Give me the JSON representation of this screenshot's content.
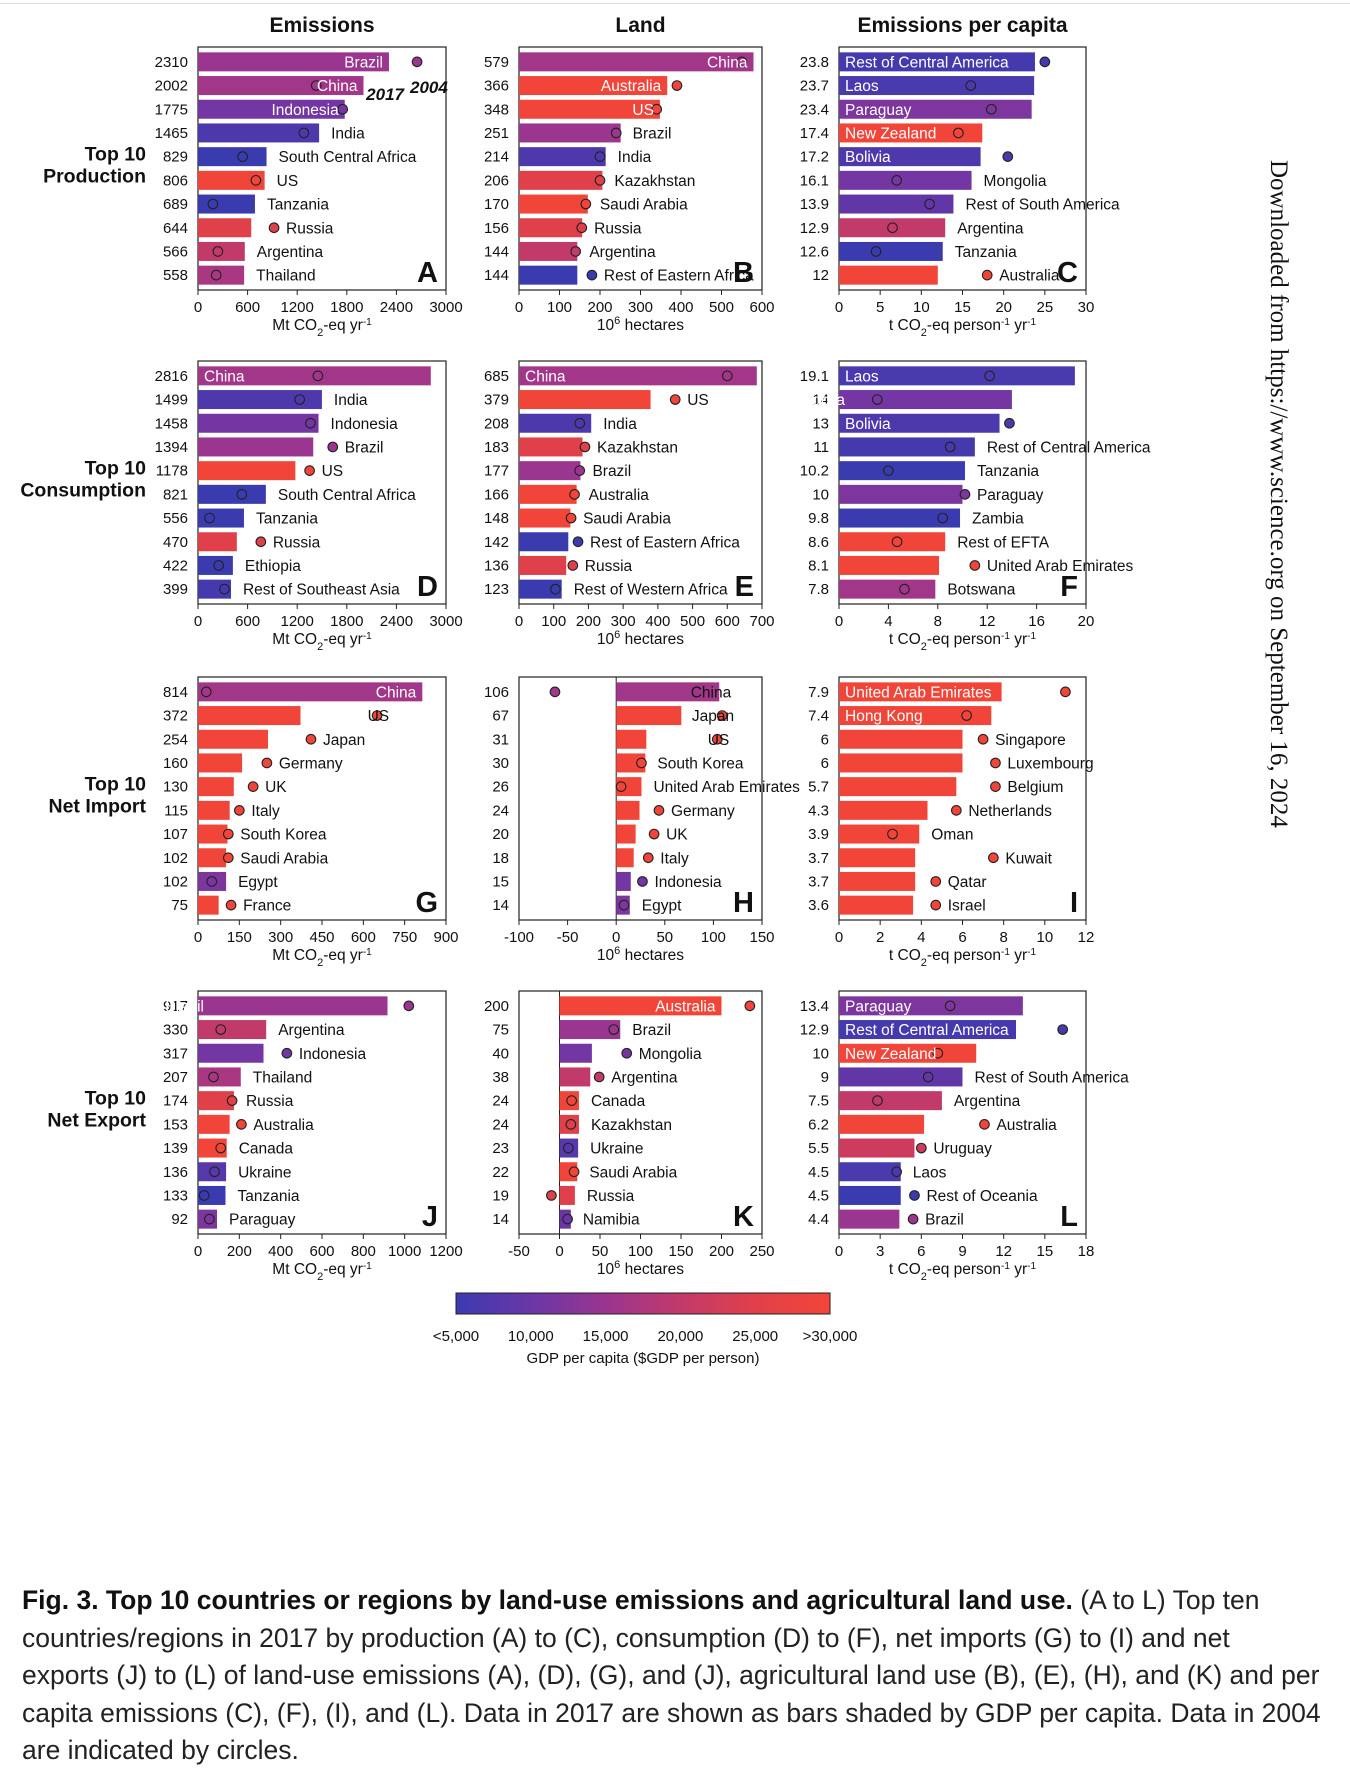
{
  "columns": [
    "Emissions",
    "Land",
    "Emissions per capita"
  ],
  "rows": [
    "Top 10\nProduction",
    "Top 10\nConsumption",
    "Top 10\nNet Import",
    "Top 10\nNet Export"
  ],
  "legend_inline": {
    "year_bar": "2017",
    "year_circle": "2004"
  },
  "colorbar": {
    "ticks": [
      "<5,000",
      "10,000",
      "15,000",
      "20,000",
      "25,000",
      ">30,000"
    ],
    "label": "GDP per capita ($GDP per person)",
    "gradient": [
      "#3b3bb0",
      "#6a36a6",
      "#9a3590",
      "#c23a6a",
      "#e0404a",
      "#f2453a"
    ]
  },
  "side_note": "Downloaded from https://www.science.org on September 16, 2024",
  "caption": {
    "bold": "Fig. 3. Top 10 countries or regions by land-use emissions and agricultural land use.",
    "text": "(A to L) Top ten countries/regions in 2017 by production (A) to (C), consumption (D) to (F), net imports (G) to (I) and net exports (J) to (L) of land-use emissions (A), (D), (G), and (J), agricultural land use (B), (E), (H), and (K) and per capita emissions (C), (F), (I), and (L). Data in 2017 are shown as bars shaded by GDP per capita. Data in 2004 are indicated by circles."
  },
  "chart_data": [
    {
      "panel": "A",
      "type": "bar",
      "xlabel": "Mt CO2-eq yr-1",
      "xlim": [
        0,
        3000
      ],
      "xticks": [
        0,
        600,
        1200,
        1800,
        2400,
        3000
      ],
      "categories": [
        "Brazil",
        "China",
        "Indonesia",
        "India",
        "South Central Africa",
        "US",
        "Tanzania",
        "Russia",
        "Argentina",
        "Thailand"
      ],
      "values_2017": [
        2310,
        2002,
        1775,
        1465,
        829,
        806,
        689,
        644,
        566,
        558
      ],
      "values_2004": [
        2650,
        1430,
        1750,
        1280,
        540,
        700,
        180,
        920,
        240,
        220
      ],
      "gdp_per_capita": [
        15000,
        16000,
        11000,
        7000,
        5000,
        60000,
        3000,
        25000,
        20000,
        17000
      ]
    },
    {
      "panel": "B",
      "type": "bar",
      "xlabel": "10^6 hectares",
      "xlim": [
        0,
        600
      ],
      "xticks": [
        0,
        100,
        200,
        300,
        400,
        500,
        600
      ],
      "categories": [
        "China",
        "Australia",
        "US",
        "Brazil",
        "India",
        "Kazakhstan",
        "Saudi Arabia",
        "Russia",
        "Argentina",
        "Rest of Eastern Africa"
      ],
      "values_2017": [
        579,
        366,
        348,
        251,
        214,
        206,
        170,
        156,
        144,
        144
      ],
      "values_2004": [
        550,
        390,
        340,
        240,
        200,
        200,
        165,
        155,
        140,
        180
      ],
      "gdp_per_capita": [
        16000,
        48000,
        60000,
        15000,
        7000,
        25000,
        50000,
        25000,
        20000,
        3000
      ]
    },
    {
      "panel": "C",
      "type": "bar",
      "xlabel": "t CO2-eq person-1 yr-1",
      "xlim": [
        0,
        30
      ],
      "xticks": [
        0,
        5,
        10,
        15,
        20,
        25,
        30
      ],
      "categories": [
        "Rest of Central America",
        "Laos",
        "Paraguay",
        "New Zealand",
        "Bolivia",
        "Mongolia",
        "Rest of South America",
        "Argentina",
        "Tanzania",
        "Australia"
      ],
      "values_2017": [
        23.8,
        23.7,
        23.4,
        17.4,
        17.2,
        16.1,
        13.9,
        12.9,
        12.6,
        12.0
      ],
      "values_2004": [
        25.0,
        16.0,
        18.5,
        14.5,
        20.5,
        7.0,
        11.0,
        6.5,
        4.5,
        18.0
      ],
      "gdp_per_capita": [
        6000,
        6500,
        12000,
        38000,
        7000,
        11000,
        9000,
        20000,
        3000,
        48000
      ]
    },
    {
      "panel": "D",
      "type": "bar",
      "xlabel": "Mt CO2-eq yr-1",
      "xlim": [
        0,
        3000
      ],
      "xticks": [
        0,
        600,
        1200,
        1800,
        2400,
        3000
      ],
      "categories": [
        "China",
        "India",
        "Indonesia",
        "Brazil",
        "US",
        "South Central Africa",
        "Tanzania",
        "Russia",
        "Ethiopia",
        "Rest of Southeast Asia"
      ],
      "values_2017": [
        2816,
        1499,
        1458,
        1394,
        1178,
        821,
        556,
        470,
        422,
        399
      ],
      "values_2004": [
        1450,
        1230,
        1360,
        1630,
        1350,
        530,
        140,
        760,
        250,
        320
      ],
      "gdp_per_capita": [
        16000,
        7000,
        11000,
        15000,
        60000,
        5000,
        3000,
        25000,
        2000,
        6000
      ]
    },
    {
      "panel": "E",
      "type": "bar",
      "xlabel": "10^6 hectares",
      "xlim": [
        0,
        700
      ],
      "xticks": [
        0,
        100,
        200,
        300,
        400,
        500,
        600,
        700
      ],
      "categories": [
        "China",
        "US",
        "India",
        "Kazakhstan",
        "Brazil",
        "Australia",
        "Saudi Arabia",
        "Rest of Eastern Africa",
        "Russia",
        "Rest of Western Africa"
      ],
      "values_2017": [
        685,
        379,
        208,
        183,
        177,
        166,
        148,
        142,
        136,
        123
      ],
      "values_2004": [
        600,
        450,
        175,
        190,
        175,
        160,
        150,
        170,
        155,
        105
      ],
      "gdp_per_capita": [
        16000,
        60000,
        7000,
        25000,
        15000,
        48000,
        50000,
        3000,
        25000,
        5000
      ]
    },
    {
      "panel": "F",
      "type": "bar",
      "xlabel": "t CO2-eq person-1 yr-1",
      "xlim": [
        0,
        20
      ],
      "xticks": [
        0,
        4,
        8,
        12,
        16,
        20
      ],
      "categories": [
        "Laos",
        "Mongolia",
        "Bolivia",
        "Rest of Central America",
        "Tanzania",
        "Paraguay",
        "Zambia",
        "Rest of EFTA",
        "United Arab Emirates",
        "Botswana"
      ],
      "values_2017": [
        19.1,
        14.0,
        13.0,
        11.0,
        10.2,
        10.0,
        9.8,
        8.6,
        8.1,
        7.8
      ],
      "values_2004": [
        12.2,
        3.1,
        13.8,
        9.0,
        4.0,
        10.2,
        8.4,
        4.7,
        11.0,
        5.3
      ],
      "gdp_per_capita": [
        6500,
        11000,
        7000,
        6000,
        3000,
        12000,
        4000,
        60000,
        70000,
        16000
      ]
    },
    {
      "panel": "G",
      "type": "bar",
      "xlabel": "Mt CO2-eq yr-1",
      "xlim": [
        0,
        900
      ],
      "xticks": [
        0,
        150,
        300,
        450,
        600,
        750,
        900
      ],
      "categories": [
        "China",
        "US",
        "Japan",
        "Germany",
        "UK",
        "Italy",
        "South Korea",
        "Saudi Arabia",
        "Egypt",
        "France"
      ],
      "values_2017": [
        814,
        372,
        254,
        160,
        130,
        115,
        107,
        102,
        102,
        75
      ],
      "values_2004": [
        30,
        650,
        410,
        250,
        200,
        150,
        110,
        110,
        50,
        120
      ],
      "gdp_per_capita": [
        16000,
        60000,
        42000,
        50000,
        44000,
        40000,
        40000,
        50000,
        12000,
        44000
      ]
    },
    {
      "panel": "H",
      "type": "bar",
      "xlabel": "10^6 hectares",
      "xlim": [
        -100,
        150
      ],
      "xticks": [
        -100,
        -50,
        0,
        50,
        100,
        150
      ],
      "categories": [
        "China",
        "Japan",
        "US",
        "South Korea",
        "United Arab Emirates",
        "Germany",
        "UK",
        "Italy",
        "Indonesia",
        "Egypt"
      ],
      "values_2017": [
        106,
        67,
        31,
        30,
        26,
        24,
        20,
        18,
        15,
        14
      ],
      "values_2004": [
        -63,
        109,
        104,
        26,
        5,
        44,
        39,
        33,
        27,
        8
      ],
      "gdp_per_capita": [
        16000,
        42000,
        60000,
        40000,
        70000,
        50000,
        44000,
        40000,
        11000,
        12000
      ]
    },
    {
      "panel": "I",
      "type": "bar",
      "xlabel": "t CO2-eq person-1 yr-1",
      "xlim": [
        0,
        12
      ],
      "xticks": [
        0,
        2,
        4,
        6,
        8,
        10,
        12
      ],
      "categories": [
        "United Arab Emirates",
        "Hong Kong",
        "Singapore",
        "Luxembourg",
        "Belgium",
        "Netherlands",
        "Oman",
        "Kuwait",
        "Qatar",
        "Israel"
      ],
      "values_2017": [
        7.9,
        7.4,
        6.0,
        6.0,
        5.7,
        4.3,
        3.9,
        3.7,
        3.7,
        3.6
      ],
      "values_2004": [
        11.0,
        6.2,
        7.0,
        7.6,
        7.6,
        5.7,
        2.6,
        7.5,
        4.7,
        4.7
      ],
      "gdp_per_capita": [
        70000,
        60000,
        90000,
        110000,
        48000,
        54000,
        40000,
        65000,
        120000,
        38000
      ]
    },
    {
      "panel": "J",
      "type": "bar",
      "xlabel": "Mt CO2-eq yr-1",
      "xlim": [
        0,
        1200
      ],
      "xticks": [
        0,
        200,
        400,
        600,
        800,
        1000,
        1200
      ],
      "categories": [
        "Brazil",
        "Argentina",
        "Indonesia",
        "Thailand",
        "Russia",
        "Australia",
        "Canada",
        "Ukraine",
        "Tanzania",
        "Paraguay"
      ],
      "values_2017": [
        917,
        330,
        317,
        207,
        174,
        153,
        139,
        136,
        133,
        92
      ],
      "values_2004": [
        1020,
        110,
        430,
        75,
        165,
        210,
        110,
        80,
        30,
        55
      ],
      "gdp_per_capita": [
        15000,
        20000,
        11000,
        17000,
        25000,
        48000,
        46000,
        8000,
        3000,
        12000
      ]
    },
    {
      "panel": "K",
      "type": "bar",
      "xlabel": "10^6 hectares",
      "xlim": [
        -50,
        250
      ],
      "xticks": [
        -50,
        0,
        50,
        100,
        150,
        200,
        250
      ],
      "categories": [
        "Australia",
        "Brazil",
        "Mongolia",
        "Argentina",
        "Canada",
        "Kazakhstan",
        "Ukraine",
        "Saudi Arabia",
        "Russia",
        "Namibia"
      ],
      "values_2017": [
        200,
        75,
        40,
        38,
        24,
        24,
        23,
        22,
        19,
        14
      ],
      "values_2004": [
        235,
        67,
        83,
        49,
        15,
        14,
        11,
        18,
        -10,
        10
      ],
      "gdp_per_capita": [
        48000,
        15000,
        11000,
        20000,
        46000,
        25000,
        8000,
        50000,
        25000,
        10000
      ]
    },
    {
      "panel": "L",
      "type": "bar",
      "xlabel": "t CO2-eq person-1 yr-1",
      "xlim": [
        0,
        18
      ],
      "xticks": [
        0,
        3,
        6,
        9,
        12,
        15,
        18
      ],
      "categories": [
        "Paraguay",
        "Rest of Central America",
        "New Zealand",
        "Rest of South America",
        "Argentina",
        "Australia",
        "Uruguay",
        "Laos",
        "Rest of Oceania",
        "Brazil"
      ],
      "values_2017": [
        13.4,
        12.9,
        10.0,
        9.0,
        7.5,
        6.2,
        5.5,
        4.5,
        4.5,
        4.4
      ],
      "values_2004": [
        8.1,
        16.3,
        7.2,
        6.5,
        2.8,
        10.6,
        6.0,
        4.2,
        5.5,
        5.4
      ],
      "gdp_per_capita": [
        12000,
        6000,
        38000,
        9000,
        20000,
        48000,
        22000,
        6500,
        4000,
        15000
      ]
    }
  ]
}
